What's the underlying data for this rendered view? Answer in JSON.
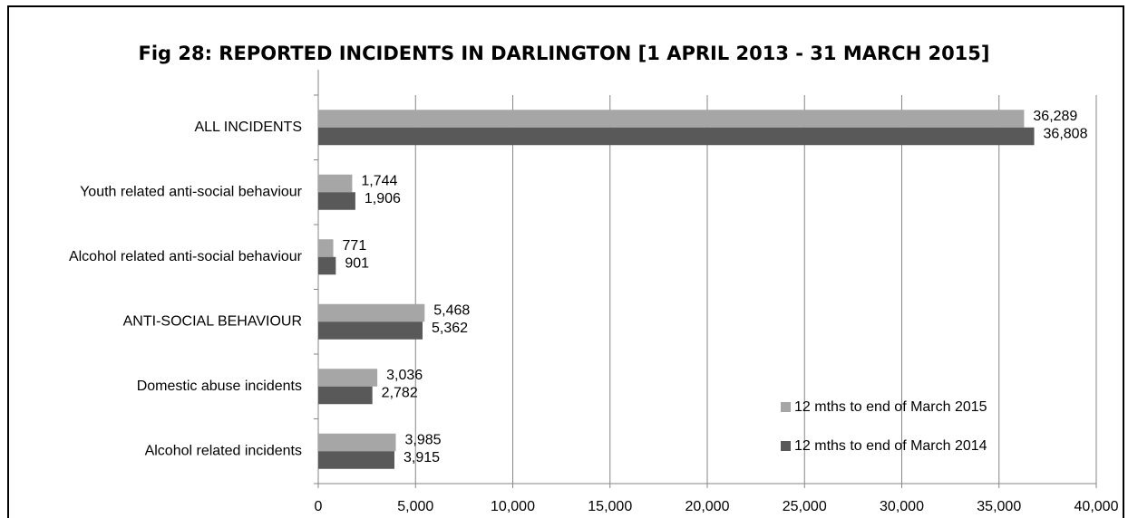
{
  "chart_data": {
    "type": "bar",
    "orientation": "horizontal",
    "title": "Fig 28: REPORTED INCIDENTS IN DARLINGTON [1 APRIL 2013 - 31 MARCH 2015]",
    "categories": [
      "ALL INCIDENTS",
      "Youth related anti-social behaviour",
      "Alcohol related anti-social behaviour",
      "ANTI-SOCIAL BEHAVIOUR",
      "Domestic abuse incidents",
      "Alcohol related incidents"
    ],
    "series": [
      {
        "name": "12 mths to end of March 2015",
        "color": "#a6a6a6",
        "values": [
          36289,
          1744,
          771,
          5468,
          3036,
          3985
        ],
        "value_labels": [
          "36,289",
          "1,744",
          "771",
          "5,468",
          "3,036",
          "3,985"
        ]
      },
      {
        "name": "12 mths to end of March 2014",
        "color": "#595959",
        "values": [
          36808,
          1906,
          901,
          5362,
          2782,
          3915
        ],
        "value_labels": [
          "36,808",
          "1,906",
          "901",
          "5,362",
          "2,782",
          "3,915"
        ]
      }
    ],
    "xlim": [
      0,
      40000
    ],
    "xticks": [
      0,
      {
        "value": 5000,
        "label": "5,000"
      },
      {
        "value": 10000,
        "label": "10,000"
      },
      {
        "value": 15000,
        "label": "15,000"
      },
      {
        "value": 20000,
        "label": "20,000"
      },
      {
        "value": 25000,
        "label": "25,000"
      },
      {
        "value": 30000,
        "label": "30,000"
      },
      {
        "value": 35000,
        "label": "35,000"
      },
      {
        "value": 40000,
        "label": "40,000"
      }
    ],
    "grid": true,
    "legend": "lower right"
  }
}
